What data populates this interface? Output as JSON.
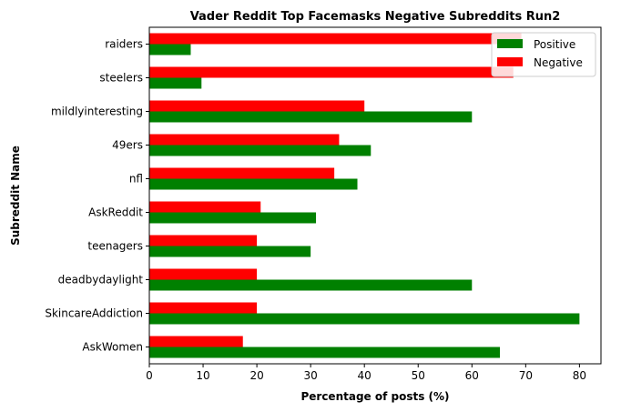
{
  "chart_data": {
    "type": "bar",
    "orientation": "horizontal",
    "title": "Vader Reddit Top Facemasks Negative Subreddits Run2",
    "xlabel": "Percentage of posts (%)",
    "ylabel": "Subreddit Name",
    "xlim": [
      0,
      84
    ],
    "xticks": [
      0,
      10,
      20,
      30,
      40,
      50,
      60,
      70,
      80
    ],
    "grid": false,
    "legend_position": "top-right",
    "categories": [
      "AskWomen",
      "SkincareAddiction",
      "deadbydaylight",
      "teenagers",
      "AskReddit",
      "nfl",
      "49ers",
      "mildlyinteresting",
      "steelers",
      "raiders"
    ],
    "series": [
      {
        "name": "Positive",
        "color": "#008000",
        "values": [
          65.2,
          80.0,
          60.0,
          30.0,
          31.0,
          38.7,
          41.2,
          60.0,
          9.7,
          7.7
        ]
      },
      {
        "name": "Negative",
        "color": "#ff0000",
        "values": [
          17.4,
          20.0,
          20.0,
          20.0,
          20.7,
          34.4,
          35.3,
          40.0,
          67.7,
          69.2
        ]
      }
    ]
  }
}
